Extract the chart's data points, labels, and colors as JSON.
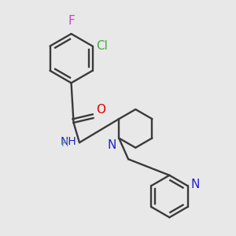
{
  "bg_color": "#e8e8e8",
  "bond_color": "#3a3a3a",
  "bond_width": 1.7,
  "F_color": "#cc44cc",
  "Cl_color": "#44aa44",
  "O_color": "#dd0000",
  "N_color": "#2222cc",
  "NH_color": "#2222cc",
  "H_color": "#5a8a8a",
  "figsize": [
    3.0,
    3.0
  ],
  "dpi": 100,
  "xlim": [
    0.0,
    1.0
  ],
  "ylim": [
    0.0,
    1.0
  ]
}
